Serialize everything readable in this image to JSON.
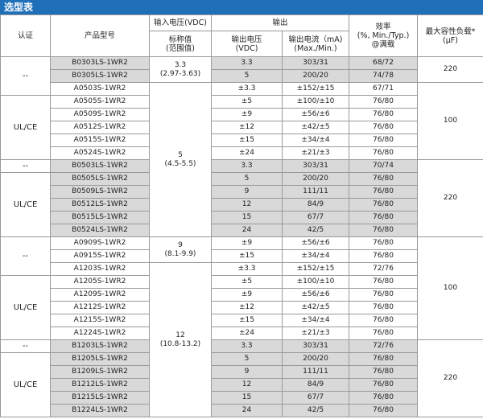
{
  "title": "选型表",
  "header": {
    "certification": "认证",
    "model": "产品型号",
    "input_voltage": "输入电压(VDC)",
    "nominal": "标称值",
    "range_note": "(范围值)",
    "output": "输出",
    "output_voltage": "输出电压",
    "output_voltage_unit": "(VDC)",
    "output_current": "输出电流（mA)",
    "output_current_unit": "(Max./Min.)",
    "efficiency": "效率",
    "efficiency_unit": "(%, Min./Typ.)",
    "efficiency_note": "@满载",
    "capacitive_load": "最大容性负载*",
    "capacitive_load_unit": "(μF)"
  },
  "certification": [
    "--",
    "UL/CE",
    "--",
    "UL/CE",
    "--",
    "UL/CE",
    "--",
    "UL/CE"
  ],
  "input_voltage": [
    {
      "nominal": "3.3",
      "range": "(2.97-3.63)"
    },
    {
      "nominal": "5",
      "range": "(4.5-5.5)"
    },
    {
      "nominal": "9",
      "range": "(8.1-9.9)"
    },
    {
      "nominal": "12",
      "range": "(10.8-13.2)"
    }
  ],
  "capacitive_load": [
    "220",
    "100",
    "220",
    "100",
    "220"
  ],
  "rows": [
    [
      "B0303LS-1WR2",
      "3.3",
      "303/31",
      "68/72"
    ],
    [
      "B0305LS-1WR2",
      "5",
      "200/20",
      "74/78"
    ],
    [
      "A0503S-1WR2",
      "±3.3",
      "±152/±15",
      "67/71"
    ],
    [
      "A0505S-1WR2",
      "±5",
      "±100/±10",
      "76/80"
    ],
    [
      "A0509S-1WR2",
      "±9",
      "±56/±6",
      "76/80"
    ],
    [
      "A0512S-1WR2",
      "±12",
      "±42/±5",
      "76/80"
    ],
    [
      "A0515S-1WR2",
      "±15",
      "±34/±4",
      "76/80"
    ],
    [
      "A0524S-1WR2",
      "±24",
      "±21/±3",
      "76/80"
    ],
    [
      "B0503LS-1WR2",
      "3.3",
      "303/31",
      "70/74"
    ],
    [
      "B0505LS-1WR2",
      "5",
      "200/20",
      "76/80"
    ],
    [
      "B0509LS-1WR2",
      "9",
      "111/11",
      "76/80"
    ],
    [
      "B0512LS-1WR2",
      "12",
      "84/9",
      "76/80"
    ],
    [
      "B0515LS-1WR2",
      "15",
      "67/7",
      "76/80"
    ],
    [
      "B0524LS-1WR2",
      "24",
      "42/5",
      "76/80"
    ],
    [
      "A0909S-1WR2",
      "±9",
      "±56/±6",
      "76/80"
    ],
    [
      "A0915S-1WR2",
      "±15",
      "±34/±4",
      "76/80"
    ],
    [
      "A1203S-1WR2",
      "±3.3",
      "±152/±15",
      "72/76"
    ],
    [
      "A1205S-1WR2",
      "±5",
      "±100/±10",
      "76/80"
    ],
    [
      "A1209S-1WR2",
      "±9",
      "±56/±6",
      "76/80"
    ],
    [
      "A1212S-1WR2",
      "±12",
      "±42/±5",
      "76/80"
    ],
    [
      "A1215S-1WR2",
      "±15",
      "±34/±4",
      "76/80"
    ],
    [
      "A1224S-1WR2",
      "±24",
      "±21/±3",
      "76/80"
    ],
    [
      "B1203LS-1WR2",
      "3.3",
      "303/31",
      "72/76"
    ],
    [
      "B1205LS-1WR2",
      "5",
      "200/20",
      "76/80"
    ],
    [
      "B1209LS-1WR2",
      "9",
      "111/11",
      "76/80"
    ],
    [
      "B1212LS-1WR2",
      "12",
      "84/9",
      "76/80"
    ],
    [
      "B1215LS-1WR2",
      "15",
      "67/7",
      "76/80"
    ],
    [
      "B1224LS-1WR2",
      "24",
      "42/5",
      "76/80"
    ]
  ]
}
